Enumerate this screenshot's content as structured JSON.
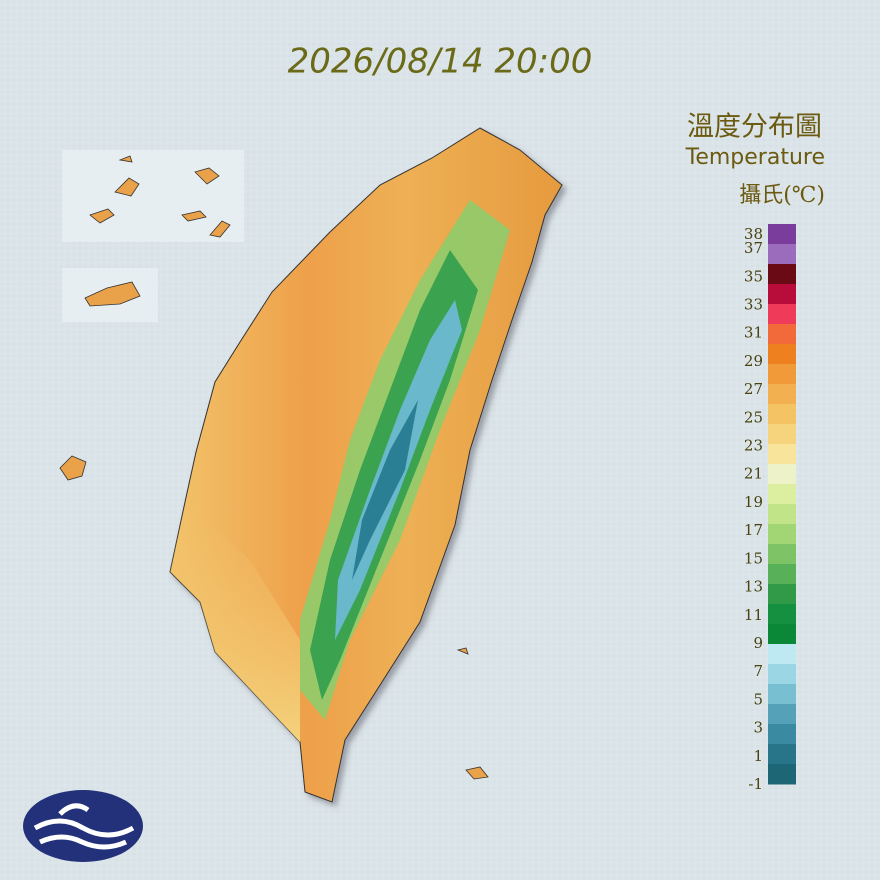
{
  "timestamp": "2026/08/14 20:00",
  "title": "溫度分布圖",
  "subtitle": "Temperature",
  "unit": "攝氏(℃)",
  "legend": {
    "ticks": [
      38,
      37,
      35,
      33,
      31,
      29,
      27,
      25,
      23,
      21,
      19,
      17,
      15,
      13,
      11,
      9,
      7,
      5,
      3,
      1,
      -1
    ],
    "colors": [
      "#7a3d9c",
      "#9c6cbc",
      "#6a0a14",
      "#b80c3a",
      "#f03a5a",
      "#f26a3a",
      "#ee8020",
      "#f09a3a",
      "#f2b050",
      "#f4c464",
      "#f6d47e",
      "#f8e49a",
      "#eef2c8",
      "#dcefa0",
      "#c2e488",
      "#a2d674",
      "#7ec466",
      "#58b058",
      "#309a48",
      "#149040",
      "#0a8838",
      "#bfe9f2",
      "#9ad6e4",
      "#78bfd2",
      "#55a2b8",
      "#3a8aa2",
      "#287488",
      "#1c6676"
    ]
  }
}
